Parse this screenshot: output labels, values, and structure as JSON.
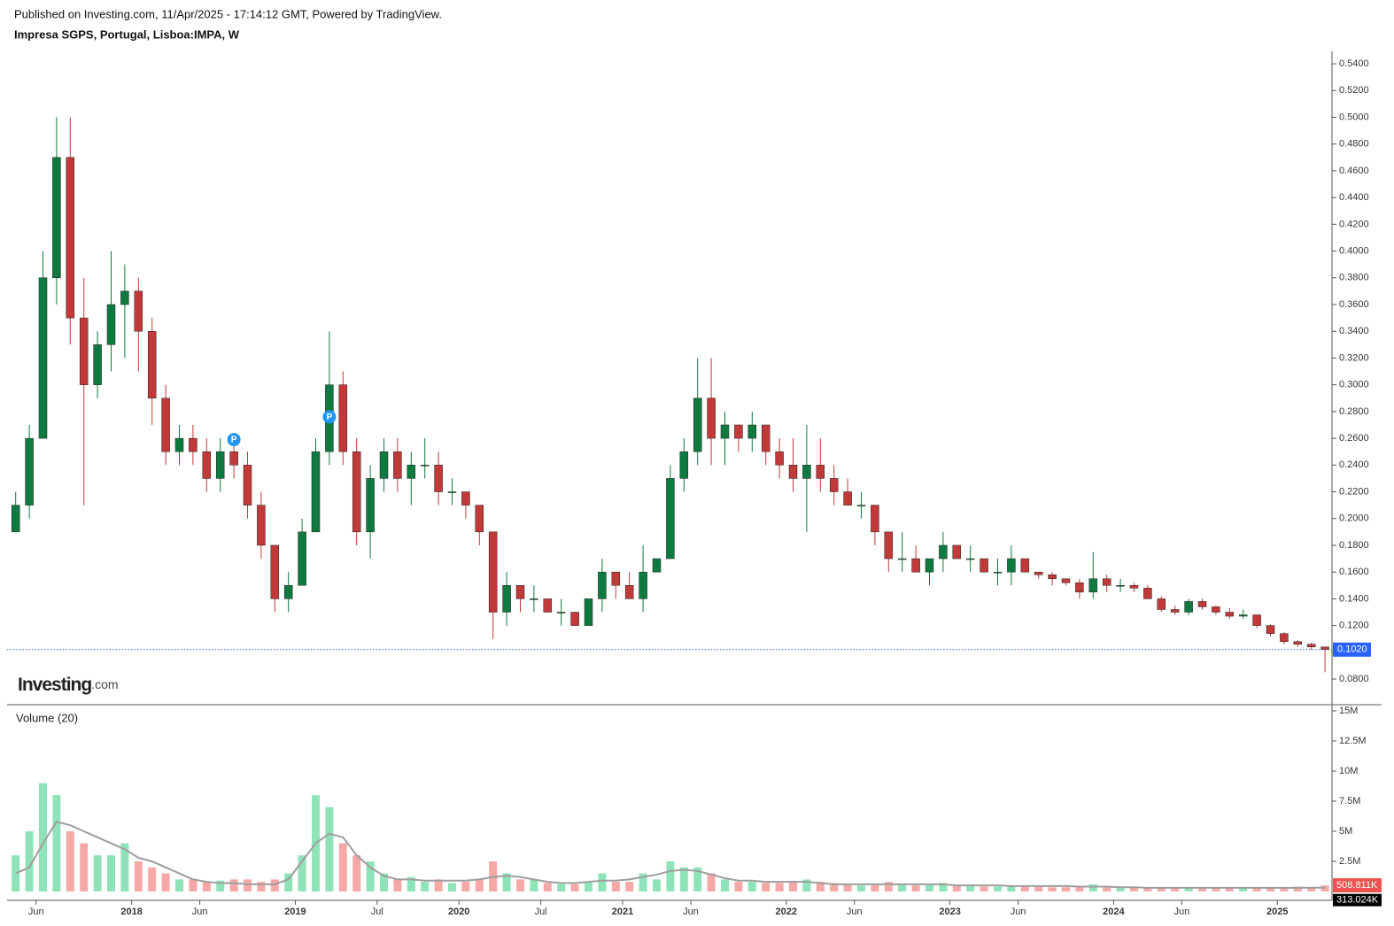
{
  "header": {
    "published": "Published on Investing.com, 11/Apr/2025 - 17:14:12 GMT, Powered by TradingView."
  },
  "logo": {
    "name": "Investing",
    "suffix": ".com"
  },
  "chart_data": {
    "type": "candlestick",
    "title": "Impresa SGPS, Portugal, Lisboa:IMPA, W",
    "x": [
      "2017-04",
      "2017-05",
      "2017-06",
      "2017-07",
      "2017-08",
      "2017-09",
      "2017-10",
      "2017-11",
      "2017-12",
      "2018-01",
      "2018-02",
      "2018-03",
      "2018-04",
      "2018-05",
      "2018-06",
      "2018-07",
      "2018-08",
      "2018-09",
      "2018-10",
      "2018-11",
      "2018-12",
      "2019-01",
      "2019-02",
      "2019-03",
      "2019-04",
      "2019-05",
      "2019-06",
      "2019-07",
      "2019-08",
      "2019-09",
      "2019-10",
      "2019-11",
      "2019-12",
      "2020-01",
      "2020-02",
      "2020-03",
      "2020-04",
      "2020-05",
      "2020-06",
      "2020-07",
      "2020-08",
      "2020-09",
      "2020-10",
      "2020-11",
      "2020-12",
      "2021-01",
      "2021-02",
      "2021-03",
      "2021-04",
      "2021-05",
      "2021-06",
      "2021-07",
      "2021-08",
      "2021-09",
      "2021-10",
      "2021-11",
      "2021-12",
      "2022-01",
      "2022-02",
      "2022-03",
      "2022-04",
      "2022-05",
      "2022-06",
      "2022-07",
      "2022-08",
      "2022-09",
      "2022-10",
      "2022-11",
      "2022-12",
      "2023-01",
      "2023-02",
      "2023-03",
      "2023-04",
      "2023-05",
      "2023-06",
      "2023-07",
      "2023-08",
      "2023-09",
      "2023-10",
      "2023-11",
      "2023-12",
      "2024-01",
      "2024-02",
      "2024-03",
      "2024-04",
      "2024-05",
      "2024-06",
      "2024-07",
      "2024-08",
      "2024-09",
      "2024-10",
      "2024-11",
      "2024-12",
      "2025-01",
      "2025-02",
      "2025-03",
      "2025-04"
    ],
    "open": [
      0.19,
      0.21,
      0.26,
      0.38,
      0.47,
      0.35,
      0.3,
      0.33,
      0.36,
      0.37,
      0.34,
      0.29,
      0.25,
      0.26,
      0.25,
      0.23,
      0.25,
      0.24,
      0.21,
      0.18,
      0.14,
      0.15,
      0.19,
      0.25,
      0.3,
      0.25,
      0.19,
      0.23,
      0.25,
      0.23,
      0.24,
      0.24,
      0.22,
      0.22,
      0.21,
      0.19,
      0.13,
      0.15,
      0.14,
      0.14,
      0.13,
      0.13,
      0.12,
      0.14,
      0.16,
      0.15,
      0.14,
      0.16,
      0.17,
      0.23,
      0.25,
      0.29,
      0.26,
      0.27,
      0.26,
      0.27,
      0.25,
      0.24,
      0.23,
      0.24,
      0.23,
      0.22,
      0.21,
      0.21,
      0.19,
      0.17,
      0.17,
      0.16,
      0.17,
      0.18,
      0.17,
      0.17,
      0.16,
      0.16,
      0.17,
      0.16,
      0.158,
      0.155,
      0.152,
      0.145,
      0.155,
      0.15,
      0.15,
      0.148,
      0.14,
      0.132,
      0.13,
      0.138,
      0.134,
      0.13,
      0.127,
      0.128,
      0.12,
      0.114,
      0.108,
      0.106,
      0.104
    ],
    "high": [
      0.22,
      0.27,
      0.4,
      0.5,
      0.5,
      0.38,
      0.34,
      0.4,
      0.39,
      0.38,
      0.35,
      0.3,
      0.27,
      0.27,
      0.26,
      0.26,
      0.26,
      0.25,
      0.22,
      0.18,
      0.16,
      0.2,
      0.26,
      0.34,
      0.31,
      0.26,
      0.24,
      0.26,
      0.26,
      0.25,
      0.26,
      0.25,
      0.23,
      0.22,
      0.21,
      0.19,
      0.16,
      0.15,
      0.15,
      0.14,
      0.14,
      0.13,
      0.14,
      0.17,
      0.16,
      0.16,
      0.18,
      0.17,
      0.24,
      0.26,
      0.32,
      0.32,
      0.28,
      0.27,
      0.28,
      0.27,
      0.26,
      0.26,
      0.27,
      0.26,
      0.24,
      0.23,
      0.22,
      0.21,
      0.19,
      0.19,
      0.18,
      0.17,
      0.19,
      0.18,
      0.18,
      0.17,
      0.17,
      0.18,
      0.17,
      0.16,
      0.16,
      0.155,
      0.155,
      0.175,
      0.158,
      0.155,
      0.152,
      0.15,
      0.142,
      0.135,
      0.14,
      0.14,
      0.135,
      0.133,
      0.132,
      0.128,
      0.121,
      0.115,
      0.109,
      0.107,
      0.104
    ],
    "low": [
      0.19,
      0.2,
      0.26,
      0.36,
      0.33,
      0.21,
      0.29,
      0.31,
      0.32,
      0.31,
      0.27,
      0.24,
      0.24,
      0.24,
      0.22,
      0.22,
      0.23,
      0.2,
      0.17,
      0.13,
      0.13,
      0.15,
      0.19,
      0.24,
      0.24,
      0.18,
      0.17,
      0.22,
      0.22,
      0.21,
      0.23,
      0.21,
      0.21,
      0.2,
      0.18,
      0.11,
      0.12,
      0.13,
      0.13,
      0.13,
      0.12,
      0.12,
      0.12,
      0.13,
      0.14,
      0.14,
      0.13,
      0.16,
      0.17,
      0.22,
      0.24,
      0.24,
      0.24,
      0.25,
      0.25,
      0.24,
      0.23,
      0.22,
      0.19,
      0.22,
      0.21,
      0.21,
      0.2,
      0.18,
      0.16,
      0.16,
      0.16,
      0.15,
      0.16,
      0.17,
      0.16,
      0.16,
      0.15,
      0.15,
      0.16,
      0.155,
      0.15,
      0.15,
      0.14,
      0.14,
      0.145,
      0.145,
      0.145,
      0.14,
      0.13,
      0.128,
      0.128,
      0.132,
      0.128,
      0.125,
      0.125,
      0.118,
      0.112,
      0.106,
      0.104,
      0.102,
      0.085
    ],
    "close": [
      0.21,
      0.26,
      0.38,
      0.47,
      0.35,
      0.3,
      0.33,
      0.36,
      0.37,
      0.34,
      0.29,
      0.25,
      0.26,
      0.25,
      0.23,
      0.25,
      0.24,
      0.21,
      0.18,
      0.14,
      0.15,
      0.19,
      0.25,
      0.3,
      0.25,
      0.19,
      0.23,
      0.25,
      0.23,
      0.24,
      0.24,
      0.22,
      0.22,
      0.21,
      0.19,
      0.13,
      0.15,
      0.14,
      0.14,
      0.13,
      0.13,
      0.12,
      0.14,
      0.16,
      0.15,
      0.14,
      0.16,
      0.17,
      0.23,
      0.25,
      0.29,
      0.26,
      0.27,
      0.26,
      0.27,
      0.25,
      0.24,
      0.23,
      0.24,
      0.23,
      0.22,
      0.21,
      0.21,
      0.19,
      0.17,
      0.17,
      0.16,
      0.17,
      0.18,
      0.17,
      0.17,
      0.16,
      0.16,
      0.17,
      0.16,
      0.158,
      0.155,
      0.152,
      0.145,
      0.155,
      0.15,
      0.15,
      0.148,
      0.14,
      0.132,
      0.13,
      0.138,
      0.134,
      0.13,
      0.127,
      0.128,
      0.12,
      0.114,
      0.108,
      0.106,
      0.104,
      0.102
    ],
    "up_color": "#0e7a3f",
    "down_color": "#c2393a",
    "ylim": [
      0.0615,
      0.5493
    ],
    "yticks": [
      {
        "value": 0.08,
        "label": "0.0800"
      },
      {
        "value": 0.1,
        "label": "0.1000"
      },
      {
        "value": 0.12,
        "label": "0.1200"
      },
      {
        "value": 0.14,
        "label": "0.1400"
      },
      {
        "value": 0.16,
        "label": "0.1600"
      },
      {
        "value": 0.18,
        "label": "0.1800"
      },
      {
        "value": 0.2,
        "label": "0.2000"
      },
      {
        "value": 0.22,
        "label": "0.2200"
      },
      {
        "value": 0.24,
        "label": "0.2400"
      },
      {
        "value": 0.26,
        "label": "0.2600"
      },
      {
        "value": 0.28,
        "label": "0.2800"
      },
      {
        "value": 0.3,
        "label": "0.3000"
      },
      {
        "value": 0.32,
        "label": "0.3200"
      },
      {
        "value": 0.34,
        "label": "0.3400"
      },
      {
        "value": 0.36,
        "label": "0.3600"
      },
      {
        "value": 0.38,
        "label": "0.3800"
      },
      {
        "value": 0.4,
        "label": "0.4000"
      },
      {
        "value": 0.42,
        "label": "0.4200"
      },
      {
        "value": 0.44,
        "label": "0.4400"
      },
      {
        "value": 0.46,
        "label": "0.4600"
      },
      {
        "value": 0.48,
        "label": "0.4800"
      },
      {
        "value": 0.5,
        "label": "0.5000"
      },
      {
        "value": 0.52,
        "label": "0.5200"
      },
      {
        "value": 0.54,
        "label": "0.5400"
      }
    ],
    "last_price": {
      "value": 0.102,
      "label": "0.1020",
      "color": "#2962ff"
    },
    "markers": [
      {
        "x": "2018-08",
        "value": 0.259,
        "label": "P"
      },
      {
        "x": "2019-03",
        "value": 0.276,
        "label": "P"
      }
    ],
    "marker_color": "#2196f3",
    "xticks": [
      {
        "value": "2017-06",
        "label": "Jun"
      },
      {
        "value": "2018-01",
        "label": "2018"
      },
      {
        "value": "2018-06",
        "label": "Jun"
      },
      {
        "value": "2019-01",
        "label": "2019"
      },
      {
        "value": "2019-07",
        "label": "Jul"
      },
      {
        "value": "2020-01",
        "label": "2020"
      },
      {
        "value": "2020-07",
        "label": "Jul"
      },
      {
        "value": "2021-01",
        "label": "2021"
      },
      {
        "value": "2021-06",
        "label": "Jun"
      },
      {
        "value": "2022-01",
        "label": "2022"
      },
      {
        "value": "2022-06",
        "label": "Jun"
      },
      {
        "value": "2023-01",
        "label": "2023"
      },
      {
        "value": "2023-06",
        "label": "Jun"
      },
      {
        "value": "2024-01",
        "label": "2024"
      },
      {
        "value": "2024-06",
        "label": "Jun"
      },
      {
        "value": "2025-01",
        "label": "2025"
      }
    ],
    "volume": {
      "title": "Volume (20)",
      "up_color": "#8fe3b8",
      "down_color": "#f6a8a6",
      "ma_color": "#9e9e9e",
      "values": [
        3000000.0,
        5000000.0,
        9000000.0,
        8000000.0,
        5000000.0,
        4000000.0,
        3000000.0,
        3000000.0,
        4000000.0,
        2500000.0,
        2000000.0,
        1500000.0,
        1000000.0,
        1000000.0,
        800000.0,
        900000.0,
        1000000.0,
        1000000.0,
        800000.0,
        1000000.0,
        1500000.0,
        3000000.0,
        8000000.0,
        7000000.0,
        4000000.0,
        3000000.0,
        2500000.0,
        1500000.0,
        1000000.0,
        1200000.0,
        800000.0,
        1000000.0,
        700000.0,
        800000.0,
        1000000.0,
        2500000.0,
        1500000.0,
        1000000.0,
        1000000.0,
        700000.0,
        600000.0,
        600000.0,
        800000.0,
        1500000.0,
        800000.0,
        800000.0,
        1500000.0,
        1000000.0,
        2500000.0,
        2000000.0,
        2000000.0,
        1500000.0,
        1000000.0,
        800000.0,
        800000.0,
        700000.0,
        700000.0,
        800000.0,
        1000000.0,
        800000.0,
        700000.0,
        600000.0,
        500000.0,
        600000.0,
        800000.0,
        600000.0,
        500000.0,
        600000.0,
        700000.0,
        500000.0,
        500000.0,
        400000.0,
        400000.0,
        500000.0,
        400000.0,
        400000.0,
        350000.0,
        350000.0,
        400000.0,
        600000.0,
        400000.0,
        400000.0,
        350000.0,
        350000.0,
        300000.0,
        300000.0,
        300000.0,
        300000.0,
        250000.0,
        250000.0,
        300000.0,
        300000.0,
        300000.0,
        350000.0,
        400000.0,
        350000.0,
        508811
      ],
      "ma_values": [
        1500000.0,
        2000000.0,
        4000000.0,
        5800000.0,
        5500000.0,
        5000000.0,
        4500000.0,
        4000000.0,
        3500000.0,
        2800000.0,
        2500000.0,
        2000000.0,
        1500000.0,
        1000000.0,
        800000.0,
        700000.0,
        700000.0,
        600000.0,
        600000.0,
        600000.0,
        1000000.0,
        2500000.0,
        4000000.0,
        4800000.0,
        4500000.0,
        3000000.0,
        2000000.0,
        1300000.0,
        1000000.0,
        1000000.0,
        900000.0,
        900000.0,
        900000.0,
        900000.0,
        1000000.0,
        1200000.0,
        1300000.0,
        1200000.0,
        1000000.0,
        800000.0,
        700000.0,
        700000.0,
        800000.0,
        900000.0,
        900000.0,
        1000000.0,
        1200000.0,
        1400000.0,
        1700000.0,
        1800000.0,
        1700000.0,
        1400000.0,
        1100000.0,
        900000.0,
        900000.0,
        800000.0,
        800000.0,
        800000.0,
        800000.0,
        700000.0,
        600000.0,
        600000.0,
        600000.0,
        600000.0,
        600000.0,
        600000.0,
        600000.0,
        600000.0,
        600000.0,
        500000.0,
        500000.0,
        500000.0,
        500000.0,
        450000.0,
        450000.0,
        450000.0,
        450000.0,
        450000.0,
        400000.0,
        400000.0,
        400000.0,
        350000.0,
        350000.0,
        300000.0,
        300000.0,
        300000.0,
        300000.0,
        300000.0,
        300000.0,
        300000.0,
        300000.0,
        300000.0,
        300000.0,
        300000.0,
        300000.0,
        310000.0,
        313024
      ],
      "ylim": [
        -590000,
        15440000
      ],
      "yticks": [
        {
          "value": 2500000,
          "label": "2.5M"
        },
        {
          "value": 5000000,
          "label": "5M"
        },
        {
          "value": 7500000,
          "label": "7.5M"
        },
        {
          "value": 10000000,
          "label": "10M"
        },
        {
          "value": 12500000,
          "label": "12.5M"
        },
        {
          "value": 15000000,
          "label": "15M"
        }
      ],
      "last_volume": {
        "value": 508811,
        "label": "508.811K",
        "color": "#ef5350"
      },
      "last_ma": {
        "value": 313024,
        "label": "313.024K",
        "color": "#000000"
      }
    }
  }
}
